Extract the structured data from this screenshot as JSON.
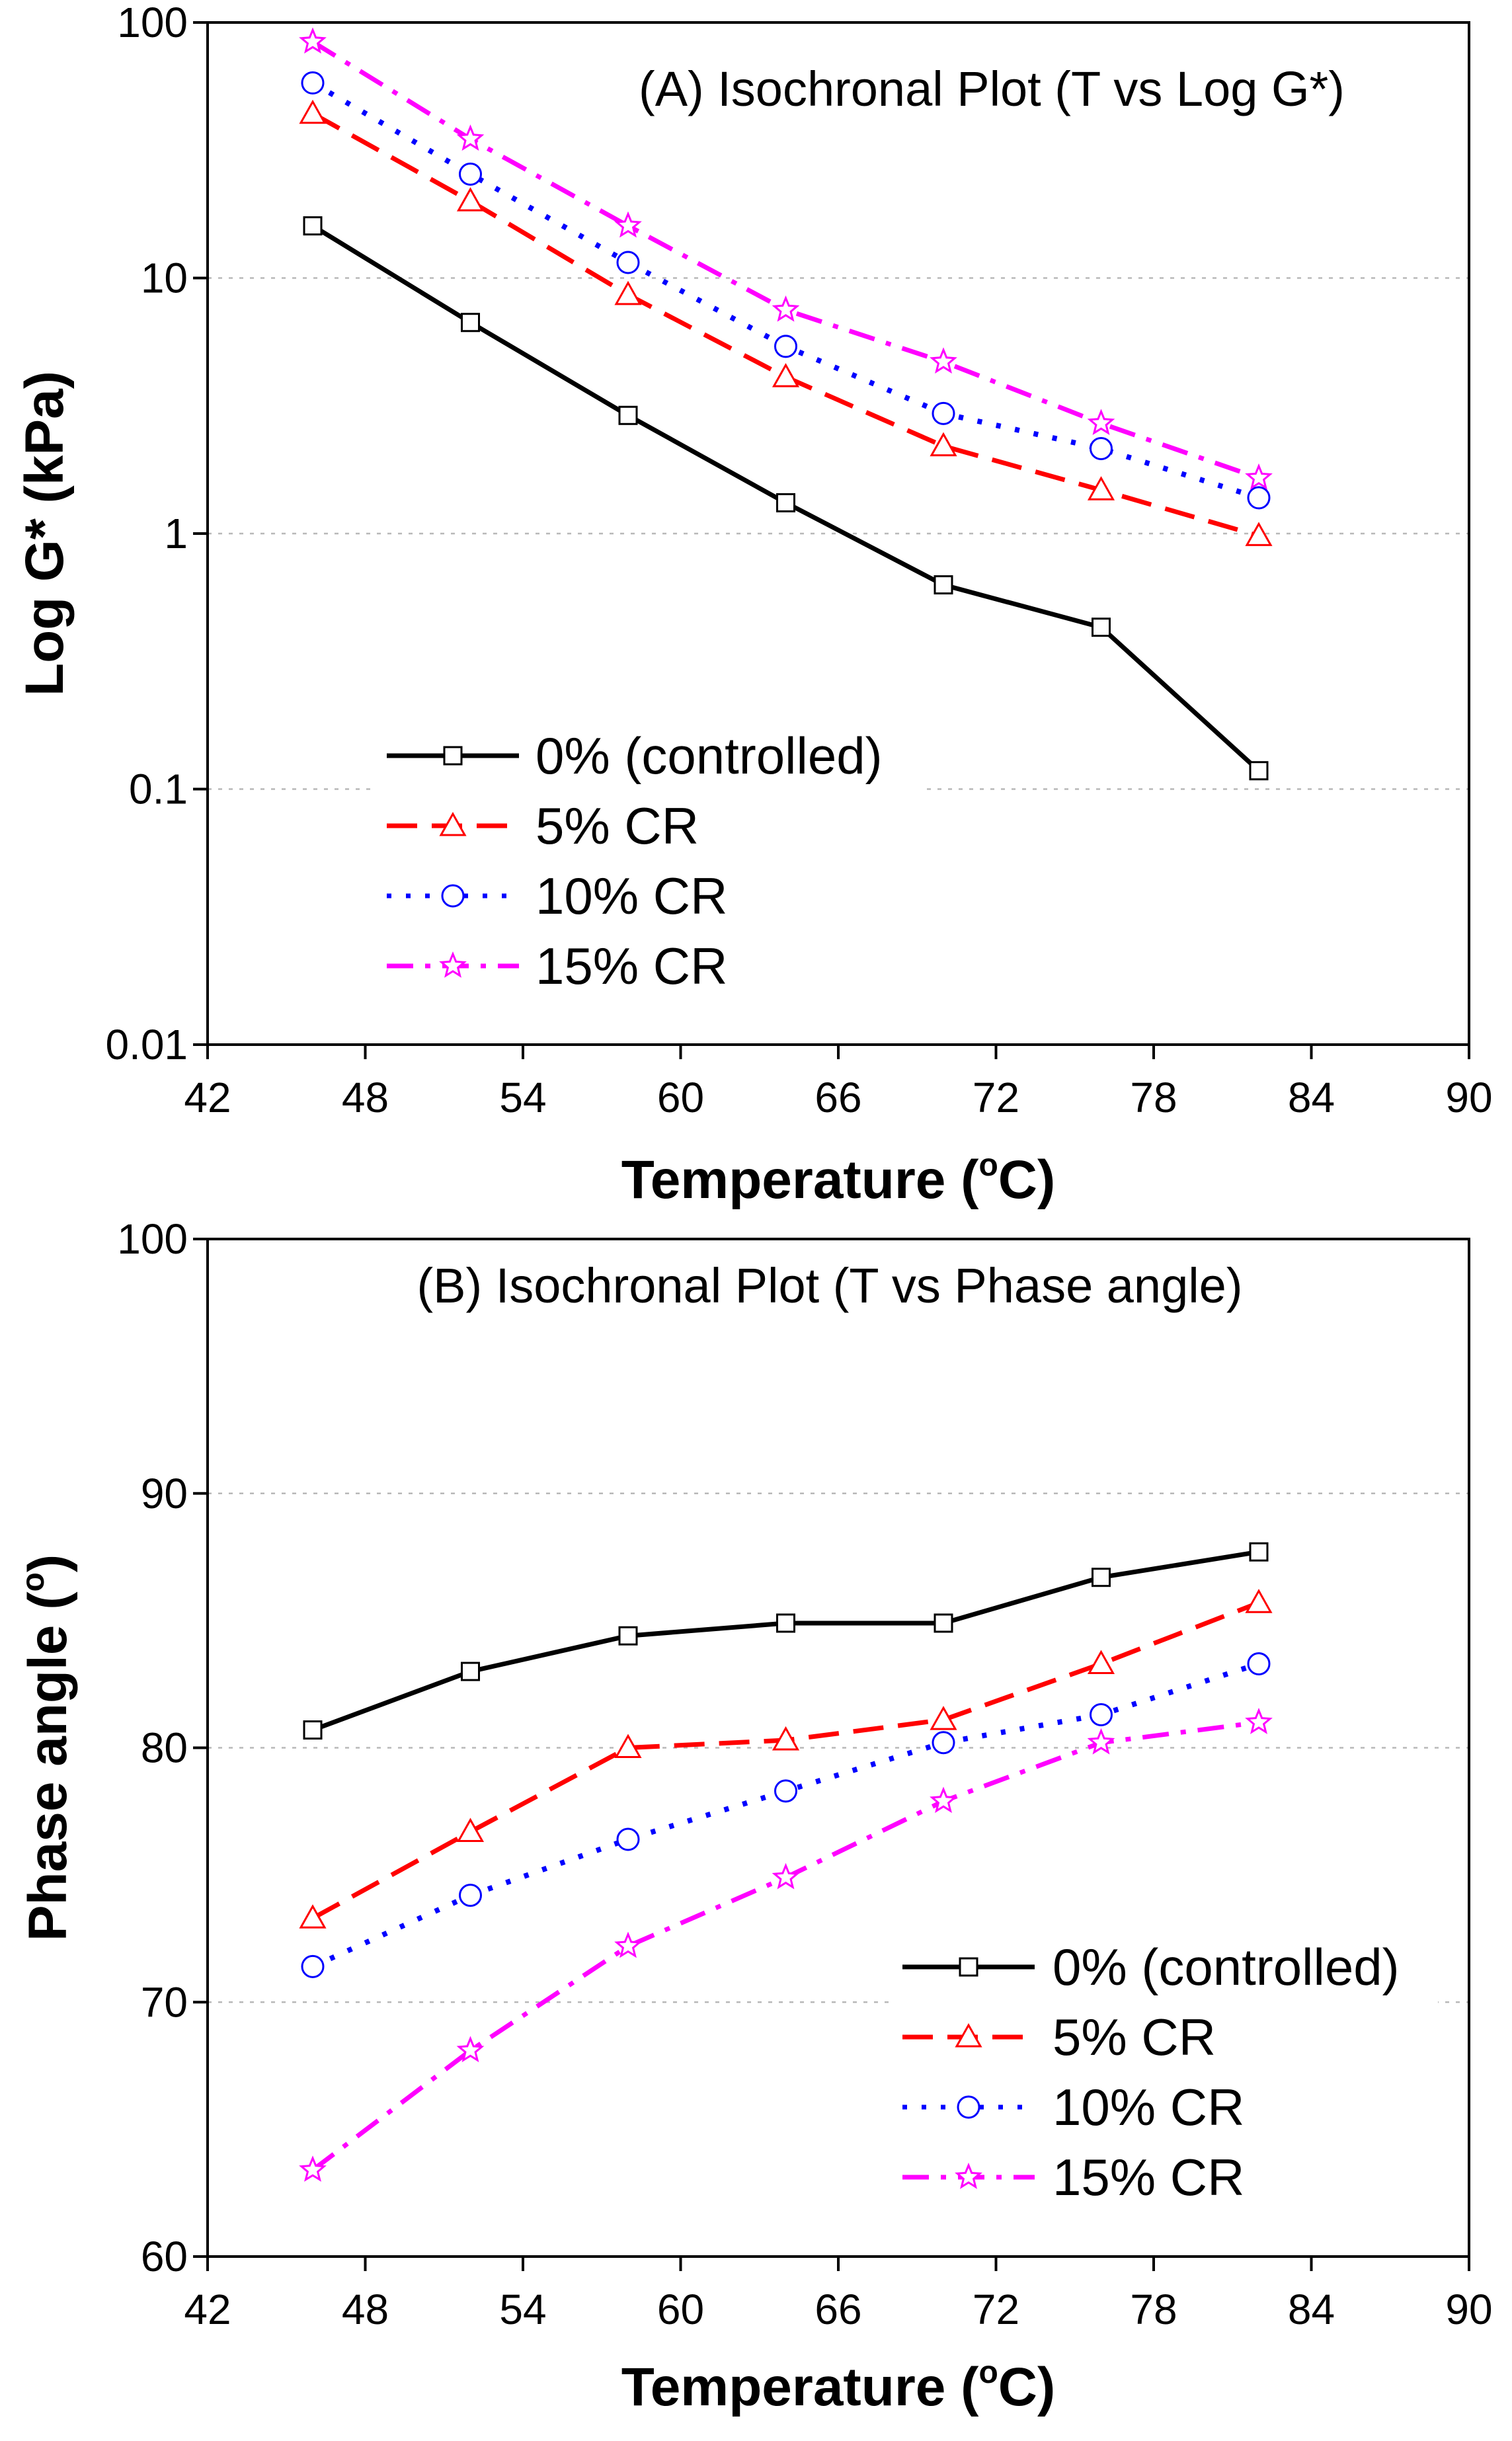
{
  "chart_data": [
    {
      "type": "line",
      "id": "A",
      "title": "(A) Isochronal Plot (T vs Log G*)",
      "xlabel": "Temperature (°C)",
      "xlabel_main": "Temperature (",
      "xlabel_sup": "o",
      "xlabel_end": "C)",
      "ylabel": "Log G* (kPa)",
      "yscale": "log",
      "xlim": [
        42,
        90
      ],
      "ylim": [
        0.01,
        100
      ],
      "x_ticks": [
        42,
        48,
        54,
        60,
        66,
        72,
        78,
        84,
        90
      ],
      "x_tick_labels": [
        "42",
        "48",
        "54",
        "60",
        "66",
        "72",
        "78",
        "84",
        "90"
      ],
      "y_ticks": [
        0.01,
        0.1,
        1,
        10,
        100
      ],
      "y_tick_labels": [
        "0.01",
        "0.1",
        "1",
        "10",
        "100"
      ],
      "gridlines_y": [
        0.1,
        1,
        10
      ],
      "legend_position": "lower-left",
      "x": [
        46,
        52,
        58,
        64,
        70,
        76,
        82
      ],
      "series": [
        {
          "name": "0% (controlled)",
          "color": "#000000",
          "dash": "solid",
          "marker": "square",
          "values": [
            16,
            6.7,
            2.9,
            1.32,
            0.63,
            0.43,
            0.118
          ]
        },
        {
          "name": "5% CR",
          "color": "#ff0000",
          "dash": "dash",
          "marker": "triangle",
          "values": [
            44,
            20,
            8.6,
            4.1,
            2.2,
            1.48,
            0.98
          ]
        },
        {
          "name": "10% CR",
          "color": "#0000ff",
          "dash": "dot",
          "marker": "circle",
          "values": [
            58,
            25.5,
            11.5,
            5.4,
            2.95,
            2.15,
            1.38
          ]
        },
        {
          "name": "15% CR",
          "color": "#ff00ff",
          "dash": "dashdot",
          "marker": "star",
          "values": [
            84,
            35,
            16,
            7.5,
            4.7,
            2.7,
            1.65
          ]
        }
      ]
    },
    {
      "type": "line",
      "id": "B",
      "title": "(B) Isochronal Plot (T vs Phase angle)",
      "xlabel": "Temperature (°C)",
      "xlabel_main": "Temperature (",
      "xlabel_sup": "o",
      "xlabel_end": "C)",
      "ylabel": "Phase angle (°)",
      "ylabel_main": "Phase angle (",
      "ylabel_sup": "o",
      "ylabel_end": ")",
      "yscale": "linear",
      "xlim": [
        42,
        90
      ],
      "ylim": [
        60,
        100
      ],
      "x_ticks": [
        42,
        48,
        54,
        60,
        66,
        72,
        78,
        84,
        90
      ],
      "x_tick_labels": [
        "42",
        "48",
        "54",
        "60",
        "66",
        "72",
        "78",
        "84",
        "90"
      ],
      "y_ticks": [
        60,
        70,
        80,
        90,
        100
      ],
      "y_tick_labels": [
        "60",
        "70",
        "80",
        "90",
        "100"
      ],
      "gridlines_y": [
        70,
        80,
        90
      ],
      "legend_position": "lower-right",
      "x": [
        46,
        52,
        58,
        64,
        70,
        76,
        82
      ],
      "series": [
        {
          "name": "0% (controlled)",
          "color": "#000000",
          "dash": "solid",
          "marker": "square",
          "values": [
            80.7,
            83.0,
            84.4,
            84.9,
            84.9,
            86.7,
            87.7
          ]
        },
        {
          "name": "5% CR",
          "color": "#ff0000",
          "dash": "dash",
          "marker": "triangle",
          "values": [
            73.3,
            76.7,
            80.0,
            80.3,
            81.1,
            83.3,
            85.7
          ]
        },
        {
          "name": "10% CR",
          "color": "#0000ff",
          "dash": "dot",
          "marker": "circle",
          "values": [
            71.4,
            74.2,
            76.4,
            78.3,
            80.2,
            81.3,
            83.3
          ]
        },
        {
          "name": "15% CR",
          "color": "#ff00ff",
          "dash": "dashdot",
          "marker": "star",
          "values": [
            63.4,
            68.1,
            72.2,
            74.9,
            77.9,
            80.2,
            81.0
          ]
        }
      ]
    }
  ]
}
